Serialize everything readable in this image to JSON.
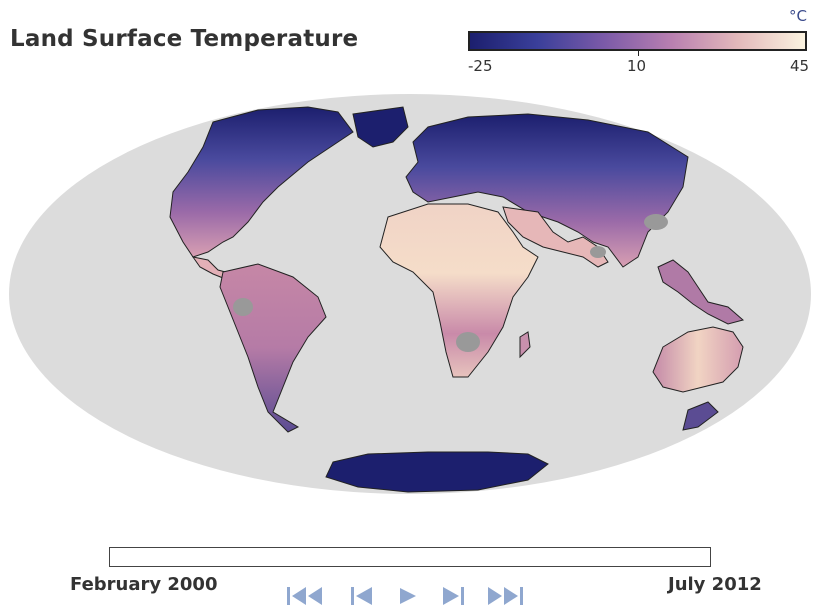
{
  "title": "Land Surface Temperature",
  "legend": {
    "unit": "°C",
    "ticks": [
      "-25",
      "10",
      "45"
    ],
    "min": -25,
    "max": 45,
    "colors": [
      "#1c1f6e",
      "#3a3f9a",
      "#7b5aa8",
      "#b87fb0",
      "#e3b9bb",
      "#fbf3e0"
    ]
  },
  "map": {
    "projection": "mollweide",
    "ocean_color": "#dcdcdc",
    "nodata_color": "#999999"
  },
  "timeline": {
    "start_label": "February 2000",
    "end_label": "July 2012"
  },
  "controls": {
    "first": "skip-to-start-icon",
    "prev": "step-back-icon",
    "play": "play-icon",
    "next": "step-forward-icon",
    "last": "skip-to-end-icon",
    "color": "#8fa7cf"
  }
}
